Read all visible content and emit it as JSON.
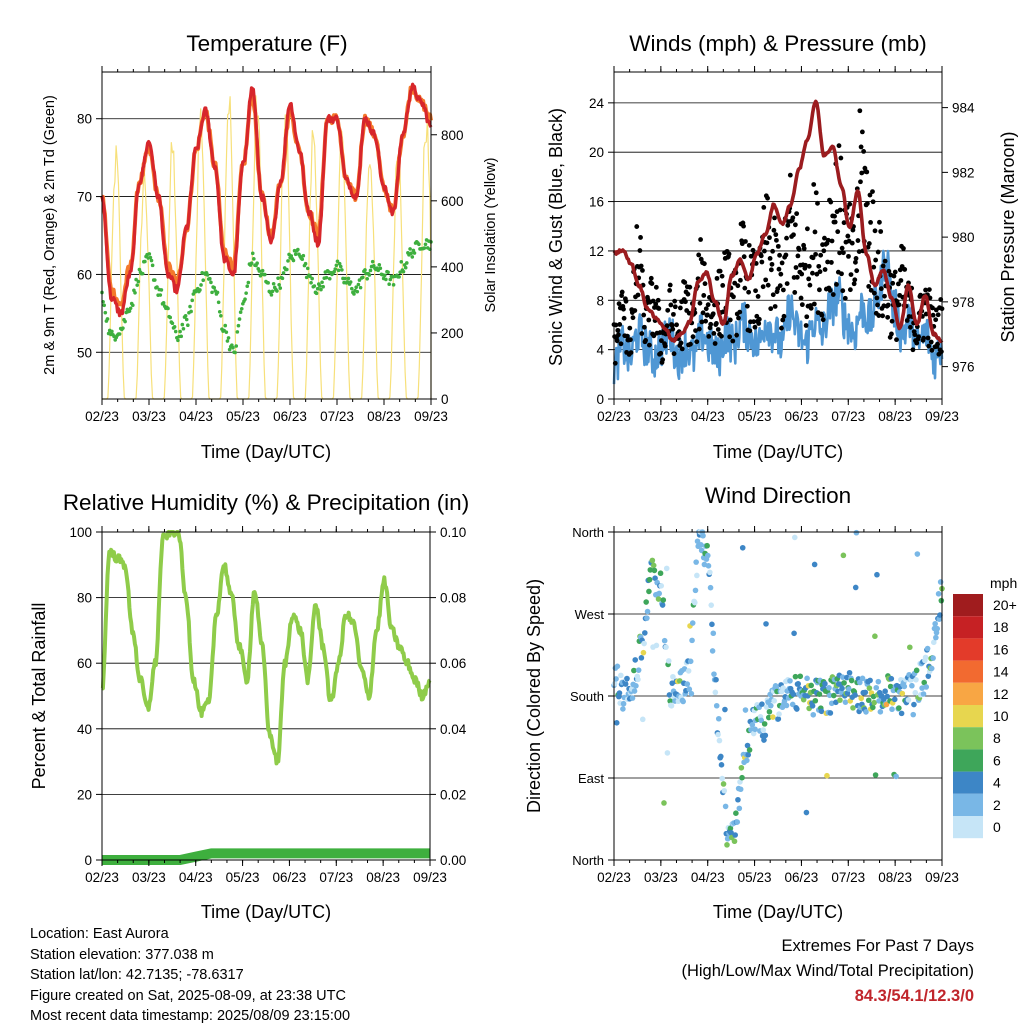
{
  "temp": {
    "title": "Temperature (F)",
    "ylabel": "2m & 9m T (Red, Orange) & 2m Td (Green)",
    "y2label": "Solar Insolation (Yellow)",
    "xlabel": "Time (Day/UTC)",
    "xticks": [
      "02/23",
      "03/23",
      "04/23",
      "05/23",
      "06/23",
      "07/23",
      "08/23",
      "09/23"
    ],
    "yticks": [
      "50",
      "60",
      "70",
      "80"
    ],
    "y2ticks": [
      "0",
      "200",
      "400",
      "600",
      "800"
    ],
    "colors": {
      "t2m": "#d7262b",
      "t9m": "#f4792c",
      "td": "#3eaf3e",
      "solar": "#f7e07a"
    }
  },
  "winds": {
    "title": "Winds (mph) & Pressure (mb)",
    "ylabel": "Sonic Wind & Gust (Blue, Black)",
    "y2label": "Station Pressure (Maroon)",
    "xlabel": "Time (Day/UTC)",
    "xticks": [
      "02/23",
      "03/23",
      "04/23",
      "05/23",
      "06/23",
      "07/23",
      "08/23",
      "09/23"
    ],
    "yticks": [
      "0",
      "4",
      "8",
      "12",
      "16",
      "20",
      "24"
    ],
    "y2ticks": [
      "976",
      "978",
      "980",
      "982",
      "984"
    ],
    "colors": {
      "wind": "#4f97d4",
      "gust": "#000000",
      "pressure": "#9b1c1f"
    }
  },
  "rh": {
    "title": "Relative Humidity (%) & Precipitation (in)",
    "ylabel": "Percent & Total Rainfall",
    "xlabel": "Time (Day/UTC)",
    "xticks": [
      "02/23",
      "03/23",
      "04/23",
      "05/23",
      "06/23",
      "07/23",
      "08/23",
      "09/23"
    ],
    "yticks": [
      "0",
      "20",
      "40",
      "60",
      "80",
      "100"
    ],
    "y2ticks": [
      "0.00",
      "0.02",
      "0.04",
      "0.06",
      "0.08",
      "0.10"
    ],
    "colors": {
      "rh": "#8fcc4a",
      "precip": "#3eaf3e"
    }
  },
  "dir": {
    "title": "Wind Direction",
    "ylabel": "Direction (Colored By Speed)",
    "xlabel": "Time (Day/UTC)",
    "xticks": [
      "02/23",
      "03/23",
      "04/23",
      "05/23",
      "06/23",
      "07/23",
      "08/23",
      "09/23"
    ],
    "yticks": [
      "North",
      "East",
      "South",
      "West",
      "North"
    ],
    "legend_unit": "mph",
    "legend_labels": [
      "20+",
      "18",
      "16",
      "14",
      "12",
      "10",
      "8",
      "6",
      "4",
      "2",
      "0"
    ],
    "legend_colors": [
      "#a01c1e",
      "#c62124",
      "#e33b2a",
      "#f26a30",
      "#f8a644",
      "#e7d64f",
      "#7bc35b",
      "#3ea65a",
      "#3d86c6",
      "#79b7e6",
      "#c6e5f7"
    ]
  },
  "chart_data": [
    {
      "type": "line",
      "title": "Temperature (F)",
      "ylim": [
        44,
        86
      ],
      "y2lim": [
        0,
        990
      ],
      "series": [
        {
          "values": [
            70,
            57,
            55,
            60,
            72,
            77,
            70,
            60,
            58,
            66,
            76,
            81,
            74,
            62,
            60,
            74,
            84,
            70,
            64,
            72,
            82,
            76,
            68,
            64,
            80,
            80,
            72,
            70,
            80,
            78,
            71,
            68,
            78,
            84,
            82,
            79
          ]
        },
        {
          "values": [
            70,
            58,
            56,
            61,
            72,
            76,
            70,
            61,
            59,
            66,
            76,
            81,
            74,
            63,
            61,
            74,
            83,
            70,
            65,
            72,
            81,
            76,
            68,
            65,
            80,
            80,
            72,
            70,
            80,
            78,
            71,
            68,
            78,
            84,
            82,
            80
          ]
        },
        {
          "values": [
            57,
            52,
            53,
            56,
            60,
            62,
            58,
            55,
            52,
            54,
            58,
            60,
            58,
            53,
            50,
            56,
            62,
            60,
            58,
            59,
            62,
            63,
            60,
            58,
            60,
            61,
            59,
            58,
            60,
            61,
            60,
            59,
            61,
            63,
            64,
            64
          ]
        },
        {
          "values": [
            0,
            50,
            780,
            0,
            40,
            720,
            0,
            60,
            810,
            0,
            40,
            920,
            0,
            30,
            980,
            0,
            40,
            960,
            0,
            30,
            920,
            0,
            20,
            870,
            0,
            30,
            850,
            0,
            30,
            800,
            0,
            20,
            830,
            0,
            40,
            900
          ]
        }
      ]
    },
    {
      "type": "scatter",
      "title": "Winds (mph) & Pressure (mb)",
      "ylim": [
        0,
        26.5
      ],
      "y2lim": [
        975,
        985.1
      ],
      "series": [
        {
          "values": [
            2,
            4,
            3,
            5,
            4,
            3,
            4,
            5,
            3,
            4,
            3,
            5,
            4,
            3,
            5,
            4,
            6,
            5,
            4,
            6,
            5,
            4,
            7,
            5,
            4,
            6,
            5,
            7,
            8,
            6,
            5,
            7,
            6,
            8,
            11,
            7,
            5,
            6,
            4,
            5,
            3,
            4
          ]
        },
        {
          "values": [
            6,
            9,
            7,
            14,
            8,
            10,
            6,
            9,
            7,
            10,
            8,
            13,
            9,
            10,
            12,
            10,
            14,
            12,
            11,
            16,
            14,
            12,
            18,
            15,
            13,
            17,
            14,
            18,
            20,
            16,
            14,
            24,
            18,
            14,
            12,
            10,
            12,
            9,
            8,
            10,
            7,
            8
          ]
        },
        {
          "values": [
            979.5,
            979.6,
            979.2,
            978.5,
            977.8,
            977.5,
            977.2,
            976.8,
            977.0,
            977.4,
            978.6,
            978.9,
            978.0,
            977.3,
            978.8,
            979.3,
            978.7,
            979.5,
            980.1,
            981.0,
            980.4,
            981.0,
            982.1,
            983.0,
            984.2,
            982.5,
            982.8,
            981.6,
            980.3,
            981.4,
            979.5,
            978.5,
            979.0,
            978.1,
            977.2,
            978.5,
            977.3,
            978.2,
            977.0,
            976.8
          ]
        }
      ]
    },
    {
      "type": "line",
      "title": "Relative Humidity (%) & Precipitation (in)",
      "ylim": [
        0,
        100
      ],
      "y2lim": [
        0,
        0.1
      ],
      "series": [
        {
          "values": [
            52,
            94,
            92,
            90,
            70,
            55,
            46,
            60,
            98,
            100,
            100,
            80,
            55,
            45,
            48,
            75,
            90,
            80,
            65,
            55,
            82,
            65,
            38,
            30,
            60,
            75,
            70,
            55,
            78,
            65,
            48,
            60,
            75,
            72,
            58,
            50,
            70,
            85,
            70,
            65,
            60,
            55,
            50,
            55
          ]
        },
        {
          "values": [
            0,
            0,
            0,
            0,
            0,
            0,
            0.001,
            0.002,
            0.002,
            0.002,
            0.002,
            0.002,
            0.002,
            0.002,
            0.002,
            0.002,
            0.002,
            0.002,
            0.002,
            0.002,
            0.002,
            0.002
          ]
        }
      ]
    },
    {
      "type": "scatter",
      "title": "Wind Direction",
      "ylim": [
        0,
        360
      ]
    }
  ],
  "info": {
    "location": "Location: East Aurora",
    "elevation": "Station elevation: 377.038 m",
    "latlon": "Station lat/lon: 42.7135; -78.6317",
    "created": "Figure created on Sat, 2025-08-09, at 23:38 UTC",
    "recent": "Most recent data timestamp: 2025/08/09 23:15:00"
  },
  "extremes": {
    "line1": "Extremes For Past 7 Days",
    "line2": "(High/Low/Max Wind/Total Precipitation)",
    "values": "84.3/54.1/12.3/0"
  }
}
